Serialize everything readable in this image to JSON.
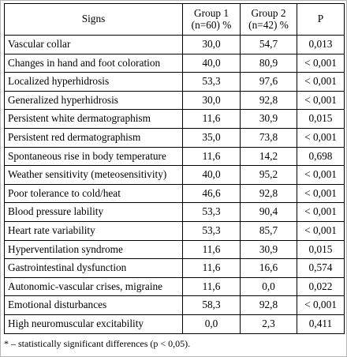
{
  "table": {
    "headers": {
      "signs": "Signs",
      "group1_line1": "Group 1",
      "group1_line2": "(n=60) %",
      "group2_line1": "Group 2",
      "group2_line2": "(n=42) %",
      "p": "P"
    },
    "rows": [
      {
        "sign": "Vascular collar",
        "g1": "30,0",
        "g2": "54,7",
        "p": "0,013"
      },
      {
        "sign": "Changes in hand and foot coloration",
        "g1": "40,0",
        "g2": "80,9",
        "p": "< 0,001"
      },
      {
        "sign": "Localized hyperhidrosis",
        "g1": "53,3",
        "g2": "97,6",
        "p": "< 0,001"
      },
      {
        "sign": "Generalized hyperhidrosis",
        "g1": "30,0",
        "g2": "92,8",
        "p": "< 0,001"
      },
      {
        "sign": "Persistent white dermatographism",
        "g1": "11,6",
        "g2": "30,9",
        "p": "0,015"
      },
      {
        "sign": "Persistent red dermatographism",
        "g1": "35,0",
        "g2": "73,8",
        "p": "< 0,001"
      },
      {
        "sign": "Spontaneous rise in body temperature",
        "g1": "11,6",
        "g2": "14,2",
        "p": "0,698"
      },
      {
        "sign": "Weather sensitivity (meteosensitivity)",
        "g1": "40,0",
        "g2": "95,2",
        "p": "< 0,001"
      },
      {
        "sign": "Poor tolerance to cold/heat",
        "g1": "46,6",
        "g2": "92,8",
        "p": "< 0,001"
      },
      {
        "sign": "Blood pressure lability",
        "g1": "53,3",
        "g2": "90,4",
        "p": "< 0,001"
      },
      {
        "sign": "Heart rate variability",
        "g1": "53,3",
        "g2": "85,7",
        "p": "< 0,001"
      },
      {
        "sign": "Hyperventilation syndrome",
        "g1": "11,6",
        "g2": "30,9",
        "p": "0,015"
      },
      {
        "sign": "Gastrointestinal dysfunction",
        "g1": "11,6",
        "g2": "16,6",
        "p": "0,574"
      },
      {
        "sign": "Autonomic-vascular crises, migraine",
        "g1": "11,6",
        "g2": "0,0",
        "p": "0,022"
      },
      {
        "sign": "Emotional disturbances",
        "g1": "58,3",
        "g2": "92,8",
        "p": "< 0,001"
      },
      {
        "sign": "High neuromuscular excitability",
        "g1": "0,0",
        "g2": "2,3",
        "p": "0,411"
      }
    ]
  },
  "footnote": "* – statistically significant differences (p < 0,05)."
}
